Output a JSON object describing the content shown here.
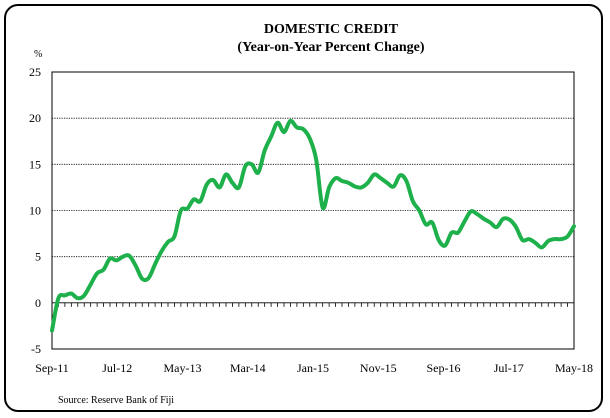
{
  "chart_data": {
    "type": "line",
    "title": "DOMESTIC CREDIT",
    "subtitle": "(Year-on-Year Percent Change)",
    "ylabel": "%",
    "xlabel": "",
    "ylim": [
      -5,
      25
    ],
    "yticks": [
      "-5",
      "0",
      "5",
      "10",
      "15",
      "20",
      "25"
    ],
    "xticks": [
      "Sep-11",
      "Jul-12",
      "May-13",
      "Mar-14",
      "Jan-15",
      "Nov-15",
      "Sep-16",
      "Jul-17",
      "May-18"
    ],
    "grid": true,
    "line_color": "#1db04b",
    "source": "Source:  Reserve Bank of Fiji",
    "series": [
      {
        "values": [
          -3.0,
          0.5,
          0.8,
          1.0,
          0.5,
          0.8,
          2.0,
          3.2,
          3.6,
          4.8,
          4.6,
          5.0,
          5.1,
          4.0,
          2.6,
          2.7,
          4.2,
          5.6,
          6.6,
          7.2,
          10.0,
          10.2,
          11.2,
          11.0,
          12.8,
          13.3,
          12.5,
          13.9,
          13.0,
          12.5,
          14.8,
          15.0,
          14.1,
          16.5,
          18.0,
          19.5,
          18.5,
          19.7,
          19.0,
          18.8,
          17.8,
          15.5,
          10.3,
          12.5,
          13.5,
          13.2,
          13.0,
          12.6,
          12.5,
          13.0,
          13.9,
          13.5,
          13.0,
          12.6,
          13.8,
          13.2,
          11.0,
          10.0,
          8.5,
          8.7,
          6.8,
          6.2,
          7.6,
          7.6,
          8.8,
          9.9,
          9.6,
          9.1,
          8.7,
          8.2,
          9.1,
          9.0,
          8.2,
          6.8,
          6.9,
          6.5,
          6.0,
          6.7,
          6.9,
          6.9,
          7.2,
          8.3
        ]
      }
    ]
  }
}
